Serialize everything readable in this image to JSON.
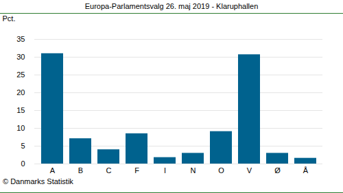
{
  "chart_data": {
    "type": "bar",
    "title": "Europa-Parlamentsvalg 26. maj 2019 - Klaruphallen",
    "y_label": "Pct.",
    "caption": "© Danmarks Statistik",
    "categories": [
      "A",
      "B",
      "C",
      "F",
      "I",
      "N",
      "O",
      "V",
      "Ø",
      "Å"
    ],
    "values": [
      31.0,
      7.1,
      4.0,
      8.5,
      1.8,
      3.0,
      9.1,
      30.7,
      3.0,
      1.6
    ],
    "color": "#00628e",
    "ylim": [
      0,
      35
    ],
    "yticks": [
      0,
      5,
      10,
      15,
      20,
      25,
      30,
      35
    ],
    "grid": true
  }
}
